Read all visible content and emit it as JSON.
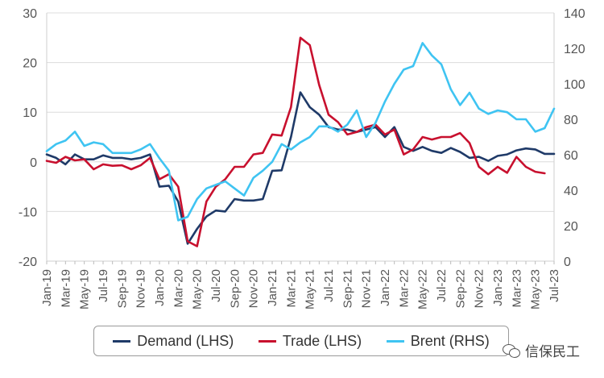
{
  "chart_data": {
    "type": "line",
    "x": [
      "Jan-19",
      "Feb-19",
      "Mar-19",
      "Apr-19",
      "May-19",
      "Jun-19",
      "Jul-19",
      "Aug-19",
      "Sep-19",
      "Oct-19",
      "Nov-19",
      "Dec-19",
      "Jan-20",
      "Feb-20",
      "Mar-20",
      "Apr-20",
      "May-20",
      "Jun-20",
      "Jul-20",
      "Aug-20",
      "Sep-20",
      "Oct-20",
      "Nov-20",
      "Dec-20",
      "Jan-21",
      "Feb-21",
      "Mar-21",
      "Apr-21",
      "May-21",
      "Jun-21",
      "Jul-21",
      "Aug-21",
      "Sep-21",
      "Oct-21",
      "Nov-21",
      "Dec-21",
      "Jan-22",
      "Feb-22",
      "Mar-22",
      "Apr-22",
      "May-22",
      "Jun-22",
      "Jul-22",
      "Aug-22",
      "Sep-22",
      "Oct-22",
      "Nov-22",
      "Dec-22",
      "Jan-23",
      "Feb-23",
      "Mar-23",
      "Apr-23",
      "May-23",
      "Jun-23",
      "Jul-23"
    ],
    "xtick_labels": [
      "Jan-19",
      "Mar-19",
      "May-19",
      "Jul-19",
      "Sep-19",
      "Nov-19",
      "Jan-20",
      "Mar-20",
      "May-20",
      "Jul-20",
      "Sep-20",
      "Nov-20",
      "Jan-21",
      "Mar-21",
      "May-21",
      "Jul-21",
      "Sep-21",
      "Nov-21",
      "Jan-22",
      "Mar-22",
      "May-22",
      "Jul-22",
      "Sep-22",
      "Nov-22",
      "Jan-23",
      "Mar-23",
      "May-23",
      "Jul-23"
    ],
    "y_left": {
      "ylim": [
        -20,
        30
      ],
      "ticks": [
        -20,
        -10,
        0,
        10,
        20,
        30
      ]
    },
    "y_right": {
      "ylim": [
        0,
        140
      ],
      "ticks": [
        0,
        20,
        40,
        60,
        80,
        100,
        120,
        140
      ]
    },
    "grid": true,
    "legend_position": "bottom",
    "series": [
      {
        "name": "Demand (LHS)",
        "axis": "left",
        "color": "#1f3a68",
        "values": [
          1.5,
          0.8,
          -0.5,
          1.5,
          0.5,
          0.5,
          1.3,
          0.8,
          0.8,
          0.5,
          0.8,
          1.5,
          -5,
          -4.8,
          -8,
          -16.5,
          -13.5,
          -11,
          -9.8,
          -10,
          -7.5,
          -7.8,
          -7.8,
          -7.5,
          -1.8,
          -1.7,
          5,
          14,
          11,
          9.5,
          7,
          6.5,
          6.5,
          6,
          6.5,
          7,
          5,
          7,
          3,
          2.2,
          3,
          2.2,
          1.8,
          2.8,
          2,
          0.8,
          1,
          0.2,
          1.2,
          1.5,
          2.3,
          2.7,
          2.5,
          1.6,
          1.6
        ]
      },
      {
        "name": "Trade (LHS)",
        "axis": "left",
        "color": "#c8102e",
        "values": [
          0.2,
          -0.2,
          1,
          0.3,
          0.5,
          -1.5,
          -0.5,
          -0.8,
          -0.7,
          -1.5,
          -0.7,
          0.8,
          -3.5,
          -2.5,
          -5,
          -16,
          -17,
          -8,
          -5,
          -3.5,
          -1,
          -1,
          1.5,
          1.8,
          5.5,
          5.3,
          11,
          25,
          23.5,
          15.5,
          9.5,
          8,
          5.5,
          6,
          7,
          7.5,
          5.5,
          6.5,
          1.5,
          2.5,
          5,
          4.5,
          5,
          5,
          5.8,
          3.8,
          -1,
          -2.5,
          -1,
          -2.2,
          1,
          -1,
          -2,
          -2.3,
          null
        ]
      },
      {
        "name": "Brent (RHS)",
        "axis": "right",
        "color": "#3fc4f2",
        "values": [
          62,
          66,
          68,
          73,
          65,
          67,
          66,
          61,
          61,
          61,
          63,
          66,
          58,
          51,
          23,
          25,
          35,
          41,
          43,
          45,
          41,
          37,
          47,
          51,
          56,
          66,
          63,
          67,
          70,
          76,
          76,
          73,
          77,
          85,
          70,
          78,
          90,
          100,
          108,
          110,
          123,
          116,
          111,
          97,
          88,
          95,
          86,
          83,
          85,
          84,
          80,
          80,
          73,
          75,
          86
        ]
      }
    ]
  },
  "legend": {
    "items": [
      {
        "label": "Demand (LHS)",
        "color": "#1f3a68"
      },
      {
        "label": "Trade (LHS)",
        "color": "#c8102e"
      },
      {
        "label": "Brent (RHS)",
        "color": "#3fc4f2"
      }
    ]
  },
  "watermark": {
    "text": "信保民工",
    "icon": "wechat-icon"
  }
}
